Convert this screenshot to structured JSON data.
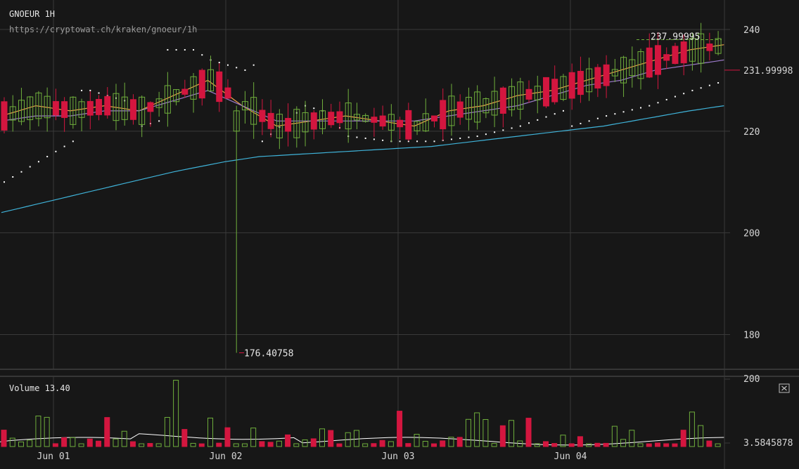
{
  "header": {
    "symbol": "GNOEUR 1H",
    "url": "https://cryptowat.ch/kraken/gnoeur/1h"
  },
  "volume_panel": {
    "label": "Volume",
    "value": "13.40",
    "close_icon": "close-icon"
  },
  "colors": {
    "background": "#171717",
    "up": "#6fae3c",
    "down": "#d3163f",
    "ema_fast": "#f0a04b",
    "ema_mid": "#9b79c9",
    "ema_slow": "#3fb3d9",
    "sar": "#ffffff",
    "volume_ma": "#ffffff"
  },
  "chart_data": [
    {
      "type": "candlestick",
      "title": "GNOEUR 1H",
      "y_ticks": [
        180,
        200,
        220,
        240
      ],
      "ylim": [
        173.3,
        245.8
      ],
      "x_ticks": [
        "Jun 01",
        "Jun 02",
        "Jun 03",
        "Jun 04"
      ],
      "annotations": [
        {
          "text": "237.99995",
          "value": 237.99995,
          "kind": "high"
        },
        {
          "text": "176.40758",
          "value": 176.40758,
          "kind": "low"
        },
        {
          "text": "231.99998",
          "value": 231.99998,
          "kind": "last"
        }
      ],
      "overlays": [
        {
          "name": "EMA fast",
          "color": "#f0a04b",
          "x": [
            0,
            4,
            8,
            12,
            16,
            20,
            24,
            28,
            32,
            36,
            40,
            44,
            48,
            52,
            56,
            60,
            64,
            68,
            72,
            76,
            80,
            84
          ],
          "y": [
            223,
            225,
            224,
            225,
            224,
            227,
            230,
            225,
            221,
            222,
            223,
            222,
            221,
            224,
            225,
            227,
            228,
            230,
            232,
            234,
            236,
            237
          ]
        },
        {
          "name": "EMA mid",
          "color": "#9b79c9",
          "x": [
            0,
            4,
            8,
            12,
            16,
            20,
            24,
            28,
            32,
            36,
            40,
            44,
            48,
            52,
            56,
            60,
            64,
            68,
            72,
            76,
            80,
            84
          ],
          "y": [
            222,
            223,
            223,
            224,
            224,
            226,
            228,
            225,
            222,
            222,
            222,
            222,
            222,
            223,
            224,
            225,
            227,
            229,
            230,
            232,
            233,
            234
          ]
        },
        {
          "name": "EMA slow",
          "color": "#3fb3d9",
          "x": [
            0,
            10,
            20,
            26,
            30,
            40,
            50,
            60,
            70,
            80,
            84
          ],
          "y": [
            204,
            208,
            212,
            214,
            215,
            216,
            217,
            219,
            221,
            224,
            225
          ]
        },
        {
          "name": "Parabolic SAR",
          "color": "#ffffff",
          "style": "dots",
          "x": [
            0,
            4,
            8,
            9,
            10,
            14,
            16,
            18,
            19,
            20,
            22,
            24,
            26,
            28,
            29,
            30,
            35,
            37,
            40,
            45,
            50,
            55,
            60,
            65,
            66,
            70,
            75,
            80,
            84
          ],
          "y": [
            210,
            214,
            218,
            228,
            228,
            226,
            221,
            222,
            236,
            236,
            236,
            234,
            233,
            232,
            233,
            218,
            225,
            224,
            219,
            218,
            218,
            219,
            221,
            224,
            221,
            223,
            225,
            228,
            230
          ]
        }
      ],
      "x_labels_at": {
        "Jun 01": 6,
        "Jun 02": 26,
        "Jun 03": 46,
        "Jun 04": 66
      }
    },
    {
      "type": "bar",
      "title": "Volume 13.40",
      "y_ticks": [
        200,
        3.5845878
      ],
      "y_tick_labels": [
        "200",
        "3.5845878"
      ],
      "ylim": [
        0,
        210
      ],
      "x_ticks": [
        "Jun 01",
        "Jun 02",
        "Jun 03",
        "Jun 04"
      ]
    }
  ]
}
